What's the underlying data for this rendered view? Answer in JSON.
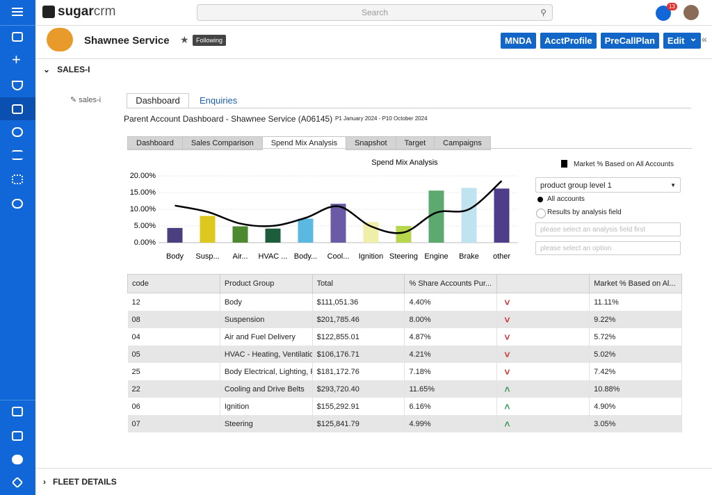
{
  "header": {
    "brand_bold": "sugar",
    "brand_light": "crm",
    "search_placeholder": "Search",
    "notification_count": "13"
  },
  "record": {
    "name": "Shawnee Service",
    "follow": "Following",
    "buttons": [
      "MNDA",
      "AcctProfile",
      "PreCallPlan",
      "Edit"
    ]
  },
  "panels": {
    "sales": "SALES-I",
    "fleet": "FLEET DETAILS"
  },
  "salesi": {
    "label": "sales-i",
    "tabs": [
      "Dashboard",
      "Enquiries"
    ],
    "dashboard_title": "Parent Account Dashboard - Shawnee Service (A06145)",
    "period": "P1 January 2024 - P10 October 2024",
    "subtabs": [
      "Dashboard",
      "Sales Comparison",
      "Spend Mix Analysis",
      "Snapshot",
      "Target",
      "Campaigns"
    ],
    "active_subtab": 2,
    "controls": {
      "select": "product group level 1",
      "radio_all": "All accounts",
      "radio_field": "Results by analysis field",
      "placeholder_field": "please select an analysis field first",
      "placeholder_option": "please select an option"
    }
  },
  "chart_data": {
    "type": "bar",
    "title": "Spend Mix Analysis",
    "categories": [
      "Body",
      "Susp...",
      "Air...",
      "HVAC ...",
      "Body...",
      "Cool...",
      "Ignition",
      "Steering",
      "Engine",
      "Brake",
      "other"
    ],
    "values": [
      4.4,
      8.0,
      4.87,
      4.21,
      7.18,
      11.65,
      6.16,
      4.99,
      15.6,
      16.4,
      16.2
    ],
    "colors": [
      "#4b3f80",
      "#dcc81f",
      "#4d8a2f",
      "#1e5d3b",
      "#5bb8e0",
      "#6b5aa5",
      "#f0efaa",
      "#b6d64c",
      "#5ea970",
      "#bfe3ef",
      "#4e3d88"
    ],
    "line_series": {
      "name": "Market % Based on All Accounts",
      "color": "#000000",
      "values": [
        11.11,
        9.22,
        5.72,
        5.02,
        7.42,
        10.88,
        4.9,
        3.05,
        9.0,
        10.0,
        18.5
      ]
    },
    "ylim": [
      0,
      20
    ],
    "yticks": [
      {
        "value": 0,
        "label": "0.00%"
      },
      {
        "value": 5,
        "label": "5.00%"
      },
      {
        "value": 10,
        "label": "10.00%"
      },
      {
        "value": 15,
        "label": "15.00%"
      },
      {
        "value": 20,
        "label": "20.00%"
      }
    ],
    "grid": true
  },
  "table": {
    "columns": [
      "code",
      "Product Group",
      "Total",
      "% Share Accounts Pur...",
      "Market % Based on Al..."
    ],
    "rows": [
      [
        "12",
        "Body",
        "$111,051.36",
        "4.40%",
        "down",
        "11.11%"
      ],
      [
        "08",
        "Suspension",
        "$201,785.46",
        "8.00%",
        "down",
        "9.22%"
      ],
      [
        "04",
        "Air and Fuel Delivery",
        "$122,855.01",
        "4.87%",
        "down",
        "5.72%"
      ],
      [
        "05",
        "HVAC - Heating, Ventilatic",
        "$106,176.71",
        "4.21%",
        "down",
        "5.02%"
      ],
      [
        "25",
        "Body Electrical, Lighting, F",
        "$181,172.76",
        "7.18%",
        "down",
        "7.42%"
      ],
      [
        "22",
        "Cooling and Drive Belts",
        "$293,720.40",
        "11.65%",
        "up",
        "10.88%"
      ],
      [
        "06",
        "Ignition",
        "$155,292.91",
        "6.16%",
        "up",
        "4.90%"
      ],
      [
        "07",
        "Steering",
        "$125,841.79",
        "4.99%",
        "up",
        "3.05%"
      ]
    ]
  }
}
